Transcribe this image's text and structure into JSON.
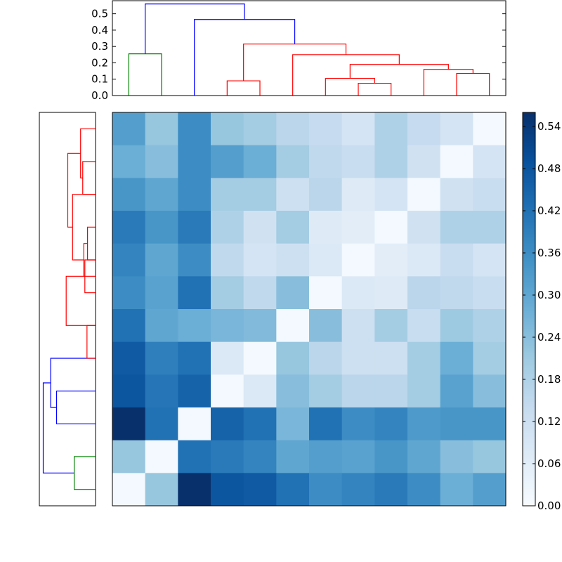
{
  "chart_data": [
    {
      "type": "heatmap",
      "title": "",
      "xlabel": "",
      "ylabel": "",
      "colormap": "Blues",
      "rows": 12,
      "cols": 12,
      "matrix": [
        [
          0.32,
          0.22,
          0.36,
          0.22,
          0.2,
          0.16,
          0.14,
          0.1,
          0.18,
          0.14,
          0.1,
          0.01
        ],
        [
          0.28,
          0.24,
          0.36,
          0.32,
          0.28,
          0.2,
          0.15,
          0.13,
          0.18,
          0.11,
          0.01,
          0.1
        ],
        [
          0.34,
          0.3,
          0.36,
          0.2,
          0.2,
          0.12,
          0.16,
          0.07,
          0.1,
          0.01,
          0.11,
          0.13
        ],
        [
          0.4,
          0.34,
          0.4,
          0.18,
          0.11,
          0.2,
          0.07,
          0.06,
          0.01,
          0.11,
          0.18,
          0.18
        ],
        [
          0.38,
          0.3,
          0.36,
          0.15,
          0.1,
          0.12,
          0.08,
          0.01,
          0.06,
          0.08,
          0.13,
          0.1
        ],
        [
          0.36,
          0.31,
          0.42,
          0.2,
          0.15,
          0.24,
          0.01,
          0.08,
          0.07,
          0.16,
          0.15,
          0.13
        ],
        [
          0.42,
          0.3,
          0.28,
          0.26,
          0.25,
          0.01,
          0.24,
          0.12,
          0.2,
          0.13,
          0.21,
          0.18
        ],
        [
          0.47,
          0.39,
          0.42,
          0.08,
          0.01,
          0.22,
          0.16,
          0.12,
          0.12,
          0.2,
          0.28,
          0.2
        ],
        [
          0.48,
          0.41,
          0.45,
          0.01,
          0.08,
          0.24,
          0.2,
          0.16,
          0.16,
          0.2,
          0.31,
          0.24
        ],
        [
          0.56,
          0.42,
          0.01,
          0.45,
          0.42,
          0.26,
          0.42,
          0.36,
          0.38,
          0.33,
          0.34,
          0.34
        ],
        [
          0.22,
          0.01,
          0.42,
          0.4,
          0.38,
          0.3,
          0.32,
          0.31,
          0.34,
          0.3,
          0.24,
          0.22
        ],
        [
          0.01,
          0.22,
          0.56,
          0.48,
          0.47,
          0.42,
          0.36,
          0.38,
          0.4,
          0.36,
          0.28,
          0.32
        ]
      ],
      "colorbar": {
        "range": [
          0.0,
          0.56
        ],
        "ticks": [
          "0.00",
          "0.06",
          "0.12",
          "0.18",
          "0.24",
          "0.30",
          "0.36",
          "0.42",
          "0.48",
          "0.54"
        ]
      },
      "colors": {
        "low": "#f7fbff",
        "high": "#08306b"
      }
    },
    {
      "type": "dendrogram",
      "orientation": "top",
      "ylim": [
        0,
        0.58
      ],
      "yticks": [
        "0.0",
        "0.1",
        "0.2",
        "0.3",
        "0.4",
        "0.5"
      ],
      "leaf_count": 12,
      "links": [
        {
          "x": [
            0.5,
            0.5,
            1.5,
            1.5
          ],
          "y": [
            0,
            0.255,
            0.255,
            0
          ],
          "color": "#008000"
        },
        {
          "x": [
            3.5,
            3.5,
            4.5,
            4.5
          ],
          "y": [
            0,
            0.09,
            0.09,
            0
          ],
          "color": "#ff0000"
        },
        {
          "x": [
            7.5,
            7.5,
            8.5,
            8.5
          ],
          "y": [
            0,
            0.075,
            0.075,
            0
          ],
          "color": "#ff0000"
        },
        {
          "x": [
            6.5,
            6.5,
            8.0,
            8.0
          ],
          "y": [
            0,
            0.105,
            0.105,
            0.075
          ],
          "color": "#ff0000"
        },
        {
          "x": [
            10.5,
            10.5,
            11.5,
            11.5
          ],
          "y": [
            0,
            0.135,
            0.135,
            0
          ],
          "color": "#ff0000"
        },
        {
          "x": [
            9.5,
            9.5,
            11.0,
            11.0
          ],
          "y": [
            0,
            0.16,
            0.16,
            0.135
          ],
          "color": "#ff0000"
        },
        {
          "x": [
            7.25,
            7.25,
            10.25,
            10.25
          ],
          "y": [
            0.105,
            0.19,
            0.19,
            0.16
          ],
          "color": "#ff0000"
        },
        {
          "x": [
            5.5,
            5.5,
            8.75,
            8.75
          ],
          "y": [
            0,
            0.25,
            0.25,
            0.19
          ],
          "color": "#ff0000"
        },
        {
          "x": [
            4.0,
            4.0,
            7.125,
            7.125
          ],
          "y": [
            0.09,
            0.315,
            0.315,
            0.25
          ],
          "color": "#ff0000"
        },
        {
          "x": [
            2.5,
            2.5,
            5.5625,
            5.5625
          ],
          "y": [
            0,
            0.465,
            0.465,
            0.315
          ],
          "color": "#0000ff"
        },
        {
          "x": [
            1.0,
            1.0,
            4.03,
            4.03
          ],
          "y": [
            0.255,
            0.56,
            0.56,
            0.465
          ],
          "color": "#0000ff"
        }
      ]
    },
    {
      "type": "dendrogram",
      "orientation": "left",
      "leaf_count": 12,
      "links": [
        {
          "x": [
            0,
            0.4,
            0.4,
            0
          ],
          "y": [
            0.5,
            0.5,
            1.5,
            1.5
          ],
          "color": "#008000"
        },
        {
          "x": [
            0,
            0.73,
            0.73,
            0
          ],
          "y": [
            2.5,
            2.5,
            3.5,
            3.5
          ],
          "color": "#0000ff"
        },
        {
          "x": [
            0.73,
            0.84,
            0.84,
            0
          ],
          "y": [
            3.0,
            3.0,
            4.5,
            4.5
          ],
          "color": "#0000ff"
        },
        {
          "x": [
            0.84,
            0.98,
            0.98,
            0.4
          ],
          "y": [
            3.75,
            3.75,
            1.0,
            1.0
          ],
          "color": "#0000ff"
        },
        {
          "x": [
            0,
            0.16,
            0.16,
            0
          ],
          "y": [
            4.5,
            4.5,
            5.5,
            5.5
          ],
          "color": "#ff0000"
        },
        {
          "x": [
            0,
            0.55,
            0.55,
            0
          ],
          "y": [
            5.5,
            5.5,
            7.0,
            7.0
          ],
          "color": "#ff0000"
        },
        {
          "x": [
            0,
            0.2,
            0.2,
            0
          ],
          "y": [
            6.5,
            6.5,
            7.5,
            7.5
          ],
          "color": "#ff0000"
        },
        {
          "x": [
            0,
            0.15,
            0.15,
            0
          ],
          "y": [
            7.5,
            7.5,
            8.5,
            8.5
          ],
          "color": "#ff0000"
        },
        {
          "x": [
            0.15,
            0.22,
            0.22,
            0.2
          ],
          "y": [
            8.0,
            8.0,
            7.0,
            7.0
          ],
          "color": "#ff0000"
        },
        {
          "x": [
            0.22,
            0.43,
            0.43,
            0
          ],
          "y": [
            7.5,
            7.5,
            9.5,
            9.5
          ],
          "color": "#ff0000"
        },
        {
          "x": [
            0,
            0.24,
            0.24,
            0
          ],
          "y": [
            9.5,
            9.5,
            10.5,
            10.5
          ],
          "color": "#ff0000"
        },
        {
          "x": [
            0,
            0.28,
            0.28,
            0.24
          ],
          "y": [
            11.5,
            11.5,
            10.0,
            10.0
          ],
          "color": "#ff0000"
        },
        {
          "x": [
            0.28,
            0.52,
            0.52,
            0.43
          ],
          "y": [
            10.75,
            10.75,
            8.5,
            8.5
          ],
          "color": "#ff0000"
        }
      ]
    }
  ]
}
